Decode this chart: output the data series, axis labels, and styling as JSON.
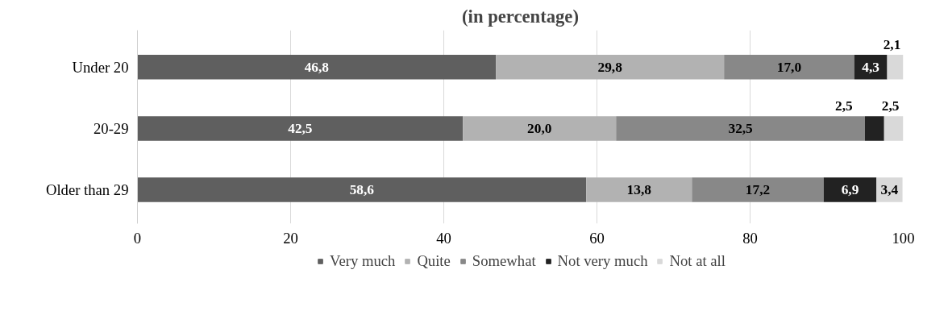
{
  "chart_data": {
    "type": "bar",
    "orientation": "horizontal",
    "stacked": true,
    "title": "(in percentage)",
    "categories": [
      "Under 20",
      "20-29",
      "Older than 29"
    ],
    "series": [
      {
        "name": "Very much",
        "color": "#5f5f5f",
        "values": [
          46.8,
          42.5,
          58.6
        ],
        "value_labels": [
          "46,8",
          "42,5",
          "58,6"
        ]
      },
      {
        "name": "Quite",
        "color": "#b2b2b2",
        "values": [
          29.8,
          20.0,
          13.8
        ],
        "value_labels": [
          "29,8",
          "20,0",
          "13,8"
        ]
      },
      {
        "name": "Somewhat",
        "color": "#888888",
        "values": [
          17.0,
          32.5,
          17.2
        ],
        "value_labels": [
          "17,0",
          "32,5",
          "17,2"
        ]
      },
      {
        "name": "Not very much",
        "color": "#222222",
        "values": [
          4.3,
          2.5,
          6.9
        ],
        "value_labels": [
          "4,3",
          "2,5",
          "6,9"
        ]
      },
      {
        "name": "Not at all",
        "color": "#d9d9d9",
        "values": [
          2.1,
          2.5,
          3.4
        ],
        "value_labels": [
          "2,1",
          "2,5",
          "3,4"
        ]
      }
    ],
    "xlim": [
      0,
      100
    ],
    "xticks": [
      0,
      20,
      40,
      60,
      80,
      100
    ],
    "grid": "x",
    "legend": "bottom"
  }
}
